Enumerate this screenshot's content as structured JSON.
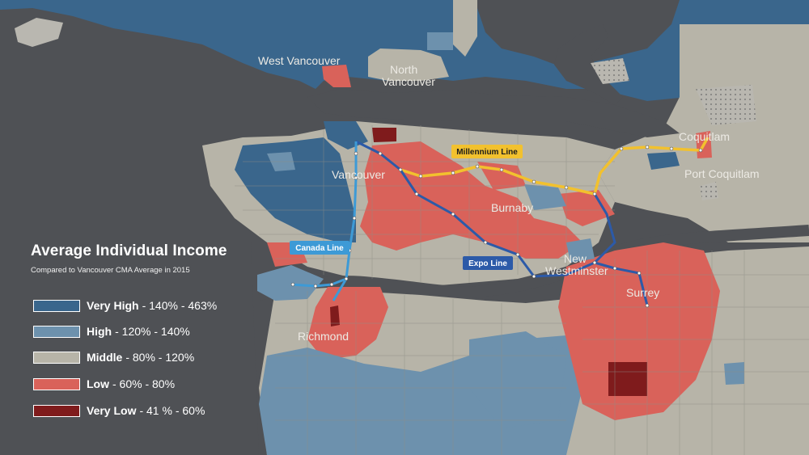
{
  "legend": {
    "title": "Average Individual Income",
    "subtitle": "Compared to Vancouver CMA Average in 2015",
    "items": [
      {
        "category": "Very High",
        "range": "- 140% - 463%",
        "color": "#3a668c"
      },
      {
        "category": "High",
        "range": "- 120% - 140%",
        "color": "#6d91ad"
      },
      {
        "category": "Middle",
        "range": "- 80% - 120%",
        "color": "#b7b4a8"
      },
      {
        "category": "Low",
        "range": "- 60% - 80%",
        "color": "#d9625a"
      },
      {
        "category": "Very Low",
        "range": "- 41 % - 60%",
        "color": "#7f1b1c"
      }
    ]
  },
  "places": {
    "west_vancouver": "West Vancouver",
    "north_vancouver_1": "North",
    "north_vancouver_2": "Vancouver",
    "vancouver": "Vancouver",
    "burnaby": "Burnaby",
    "coquitlam": "Coquitlam",
    "port_coquitlam": "Port Coquitlam",
    "new_westminster_1": "New",
    "new_westminster_2": "Westminster",
    "surrey": "Surrey",
    "richmond": "Richmond"
  },
  "transit": {
    "millennium": {
      "label": "Millennium Line",
      "color": "#f2c12e"
    },
    "expo": {
      "label": "Expo Line",
      "color": "#2c5aa8"
    },
    "canada": {
      "label": "Canada Line",
      "color": "#3d9ad6"
    }
  }
}
